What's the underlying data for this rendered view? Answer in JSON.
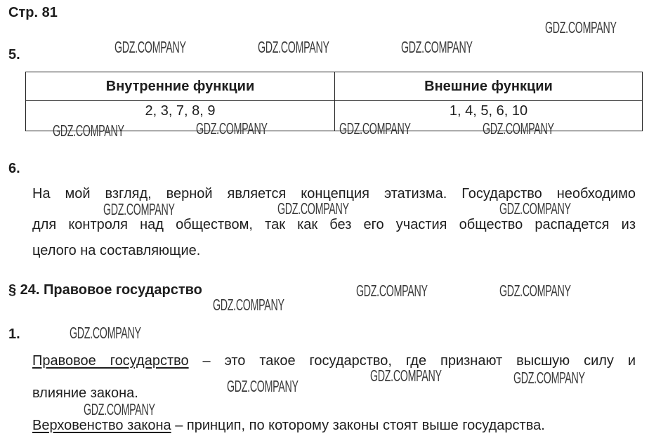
{
  "page_label": "Стр. 81",
  "watermark": "GDZ.COMPANY",
  "task5": {
    "number": "5.",
    "table": {
      "headers": [
        "Внутренние функции",
        "Внешние функции"
      ],
      "rows": [
        [
          "2, 3, 7, 8, 9",
          "1, 4, 5, 6, 10"
        ]
      ]
    }
  },
  "task6": {
    "number": "6.",
    "lines": [
      "На мой взгляд, верной является концепция этатизма. Государство необходимо",
      "для контроля над обществом, так как без его участия общество распадется из",
      "целого на составляющие."
    ]
  },
  "section": {
    "title": "§ 24. Правовое государство",
    "task1": {
      "number": "1.",
      "def1_term": "Правовое государство",
      "def1_line1": " – это такое государство, где признают высшую силу и",
      "def1_line2": "влияние закона.",
      "def2_term": "Верховенство закона",
      "def2_text": " – принцип, по которому законы стоят выше государства."
    }
  }
}
